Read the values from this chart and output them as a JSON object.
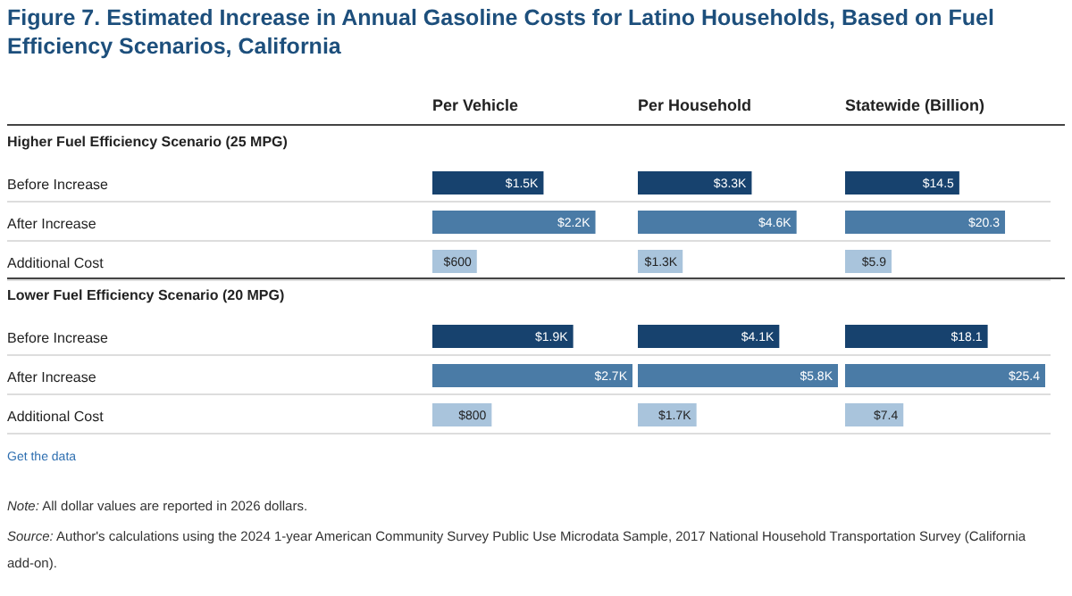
{
  "chart_data": [
    {
      "type": "other",
      "title": "Figure 7. Estimated Increase in Annual Gasoline Costs for Latino Households, Based on Fuel Efficiency Scenarios, California",
      "annotations": [
        "Higher Fuel Efficiency Scenario (25 MPG)",
        "Lower Fuel Efficiency Scenario (20 MPG)",
        "Get the data",
        "Note: All dollar values are reported in 2026 dollars.",
        "Source: Author's calculations using the 2024 1-year American Community Survey Public Use Microdata Sample, 2017 National Household Transportation Survey (California add-on)."
      ]
    },
    {
      "type": "bar",
      "orientation": "horizontal",
      "title": "Per Vehicle",
      "categories": [
        "Before Increase",
        "After Increase",
        "Additional Cost",
        "Before Increase",
        "After Increase",
        "Additional Cost"
      ],
      "values": [
        1500,
        2200,
        600,
        1900,
        2700,
        800
      ],
      "value_labels": [
        "$1.5K",
        "$2.2K",
        "$600",
        "$1.9K",
        "$2.7K",
        "$800"
      ],
      "colors": [
        "#17426e",
        "#4a7ba6",
        "#a9c4dc",
        "#17426e",
        "#4a7ba6",
        "#a9c4dc"
      ]
    },
    {
      "type": "bar",
      "orientation": "horizontal",
      "title": "Per Household",
      "categories": [
        null,
        null,
        null,
        null,
        null,
        null
      ],
      "values": [
        3300,
        4600,
        1300,
        4100,
        5800,
        1700
      ],
      "value_labels": [
        "$3.3K",
        "$4.6K",
        "$1.3K",
        "$4.1K",
        "$5.8K",
        "$1.7K"
      ],
      "colors": [
        "#17426e",
        "#4a7ba6",
        "#a9c4dc",
        "#17426e",
        "#4a7ba6",
        "#a9c4dc"
      ]
    },
    {
      "type": "bar",
      "orientation": "horizontal",
      "title": "Statewide (Billion)",
      "categories": [
        null,
        null,
        null,
        null,
        null,
        null
      ],
      "values": [
        14.5,
        20.3,
        5.9,
        18.1,
        25.4,
        7.4
      ],
      "value_labels": [
        "$14.5",
        "$20.3",
        "$5.9",
        "$18.1",
        "$25.4",
        "$7.4"
      ],
      "colors": [
        "#17426e",
        "#4a7ba6",
        "#a9c4dc",
        "#17426e",
        "#4a7ba6",
        "#a9c4dc"
      ]
    }
  ]
}
